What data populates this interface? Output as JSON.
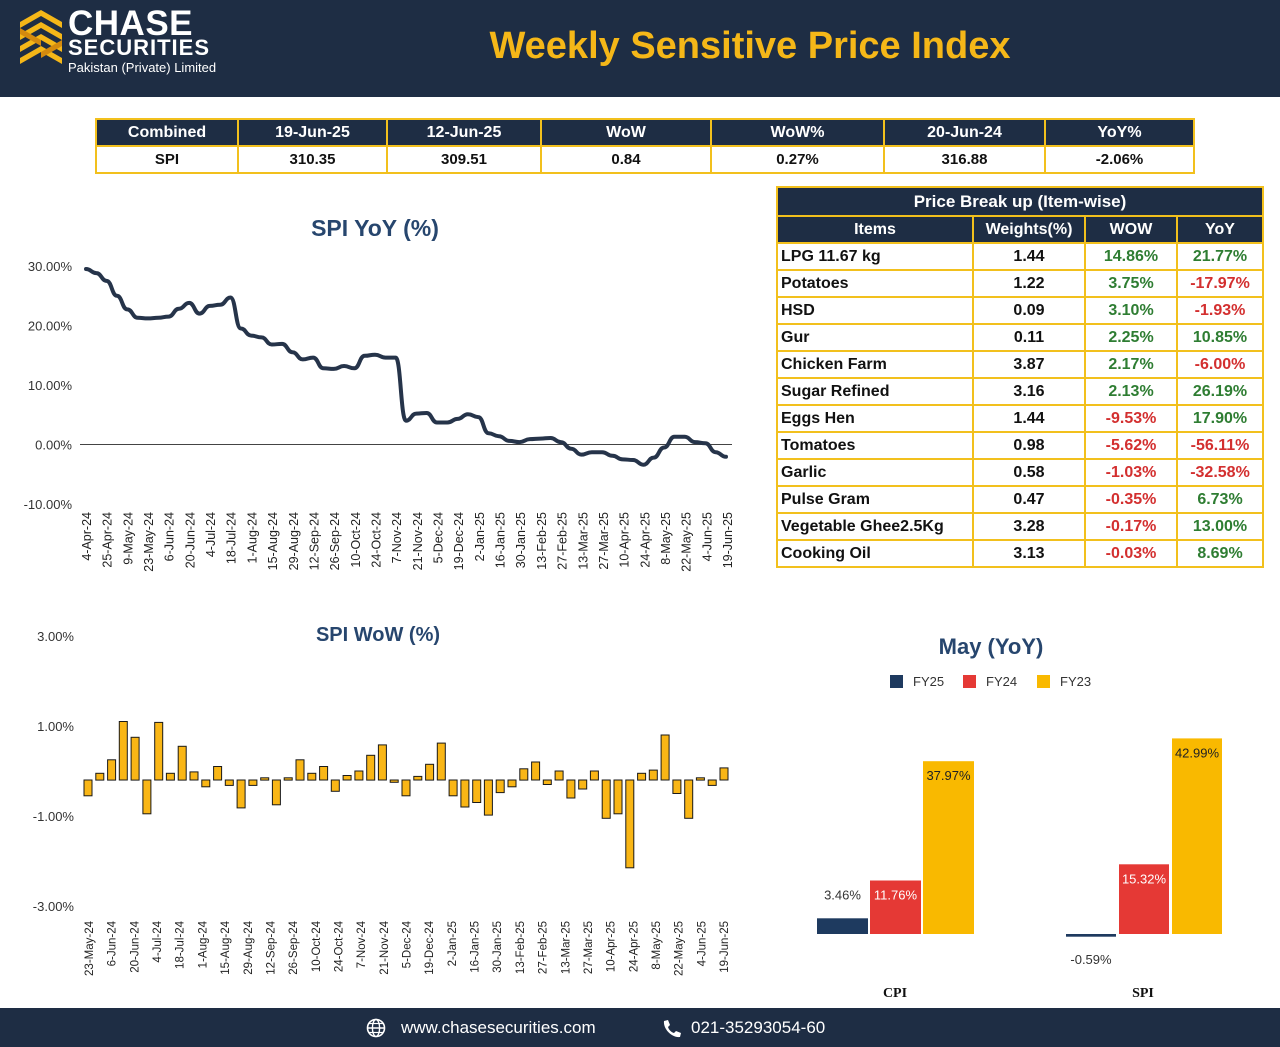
{
  "header": {
    "brand_name": "CHASE",
    "brand_sub": "SECURITIES",
    "brand_tagline": "Pakistan (Private) Limited",
    "title": "Weekly Sensitive Price Index"
  },
  "colors": {
    "navy": "#1e2d44",
    "gold": "#f5b718",
    "border_gold": "#f2c01d",
    "positive": "#2e7d32",
    "negative": "#d32f2f",
    "fy25": "#1e3a5f",
    "fy24": "#e53935",
    "fy23": "#f9b900",
    "line": "#26344a",
    "bar": "#f9b616"
  },
  "summary": {
    "headers": [
      "Combined",
      "19-Jun-25",
      "12-Jun-25",
      "WoW",
      "WoW%",
      "20-Jun-24",
      "YoY%"
    ],
    "row": [
      "SPI",
      "310.35",
      "309.51",
      "0.84",
      "0.27%",
      "316.88",
      "-2.06%"
    ]
  },
  "breakup": {
    "title": "Price Break up (Item-wise)",
    "headers": [
      "Items",
      "Weights(%)",
      "WOW",
      "YoY"
    ],
    "rows": [
      {
        "item": "LPG 11.67 kg",
        "weight": "1.44",
        "wow": "14.86%",
        "yoy": "21.77%"
      },
      {
        "item": "Potatoes",
        "weight": "1.22",
        "wow": "3.75%",
        "yoy": "-17.97%"
      },
      {
        "item": "HSD",
        "weight": "0.09",
        "wow": "3.10%",
        "yoy": "-1.93%"
      },
      {
        "item": "Gur",
        "weight": "0.11",
        "wow": "2.25%",
        "yoy": "10.85%"
      },
      {
        "item": "Chicken Farm",
        "weight": "3.87",
        "wow": "2.17%",
        "yoy": "-6.00%"
      },
      {
        "item": "Sugar Refined",
        "weight": "3.16",
        "wow": "2.13%",
        "yoy": "26.19%"
      },
      {
        "item": "Eggs Hen",
        "weight": "1.44",
        "wow": "-9.53%",
        "yoy": "17.90%"
      },
      {
        "item": "Tomatoes",
        "weight": "0.98",
        "wow": "-5.62%",
        "yoy": "-56.11%"
      },
      {
        "item": "Garlic",
        "weight": "0.58",
        "wow": "-1.03%",
        "yoy": "-32.58%"
      },
      {
        "item": "Pulse Gram",
        "weight": "0.47",
        "wow": "-0.35%",
        "yoy": "6.73%"
      },
      {
        "item": "Vegetable Ghee2.5Kg",
        "weight": "3.28",
        "wow": "-0.17%",
        "yoy": "13.00%"
      },
      {
        "item": "Cooking Oil",
        "weight": "3.13",
        "wow": "-0.03%",
        "yoy": "8.69%"
      }
    ]
  },
  "chart_data": [
    {
      "type": "line",
      "title": "SPI YoY (%)",
      "xlabel": "",
      "ylabel": "",
      "ylim": [
        -10,
        30
      ],
      "yticks": [
        "30.00%",
        "20.00%",
        "10.00%",
        "0.00%",
        "-10.00%"
      ],
      "ytick_values": [
        30,
        20,
        10,
        0,
        -10
      ],
      "xtick_labels": [
        "4-Apr-24",
        "25-Apr-24",
        "9-May-24",
        "23-May-24",
        "6-Jun-24",
        "20-Jun-24",
        "4-Jul-24",
        "18-Jul-24",
        "1-Aug-24",
        "15-Aug-24",
        "29-Aug-24",
        "12-Sep-24",
        "26-Sep-24",
        "10-Oct-24",
        "24-Oct-24",
        "7-Nov-24",
        "21-Nov-24",
        "5-Dec-24",
        "19-Dec-24",
        "2-Jan-25",
        "16-Jan-25",
        "30-Jan-25",
        "13-Feb-25",
        "27-Feb-25",
        "13-Mar-25",
        "27-Mar-25",
        "10-Apr-25",
        "24-Apr-25",
        "8-May-25",
        "22-May-25",
        "4-Jun-25",
        "19-Jun-25"
      ],
      "values": [
        29.5,
        28.8,
        27.5,
        25.0,
        22.7,
        21.3,
        21.2,
        21.3,
        21.5,
        22.8,
        23.8,
        22.0,
        23.3,
        23.5,
        24.7,
        19.5,
        18.3,
        18.0,
        16.8,
        16.9,
        15.5,
        14.3,
        14.6,
        12.8,
        12.7,
        13.2,
        12.8,
        14.9,
        15.1,
        14.6,
        14.6,
        4.0,
        5.2,
        5.3,
        3.7,
        3.7,
        4.3,
        5.1,
        4.6,
        1.9,
        1.4,
        0.6,
        0.4,
        0.9,
        1.0,
        1.1,
        0.4,
        -0.7,
        -1.7,
        -1.3,
        -1.3,
        -1.9,
        -2.5,
        -2.6,
        -3.4,
        -2.2,
        -0.5,
        1.3,
        1.3,
        0.4,
        0.2,
        -1.3,
        -2.06
      ]
    },
    {
      "type": "bar",
      "title": "SPI WoW (%)",
      "xlabel": "",
      "ylabel": "",
      "ylim": [
        -3,
        3
      ],
      "yticks": [
        "3.00%",
        "1.00%",
        "-1.00%",
        "-3.00%"
      ],
      "ytick_values": [
        3,
        1,
        -1,
        -3
      ],
      "xtick_labels": [
        "23-May-24",
        "6-Jun-24",
        "20-Jun-24",
        "4-Jul-24",
        "18-Jul-24",
        "1-Aug-24",
        "15-Aug-24",
        "29-Aug-24",
        "12-Sep-24",
        "26-Sep-24",
        "10-Oct-24",
        "24-Oct-24",
        "7-Nov-24",
        "21-Nov-24",
        "5-Dec-24",
        "19-Dec-24",
        "2-Jan-25",
        "16-Jan-25",
        "30-Jan-25",
        "13-Feb-25",
        "27-Feb-25",
        "13-Mar-25",
        "27-Mar-25",
        "10-Apr-25",
        "24-Apr-25",
        "8-May-25",
        "22-May-25",
        "4-Jun-25",
        "19-Jun-25"
      ],
      "values": [
        -0.35,
        0.15,
        0.45,
        1.3,
        0.95,
        -0.75,
        1.28,
        0.15,
        0.75,
        0.18,
        -0.15,
        0.3,
        -0.12,
        -0.62,
        -0.12,
        0.05,
        -0.55,
        0.05,
        0.45,
        0.15,
        0.3,
        -0.25,
        0.1,
        0.2,
        0.55,
        0.78,
        -0.05,
        -0.35,
        0.08,
        0.35,
        0.82,
        -0.35,
        -0.6,
        -0.5,
        -0.78,
        -0.28,
        -0.15,
        0.25,
        0.4,
        -0.1,
        0.2,
        -0.4,
        -0.2,
        0.2,
        -0.85,
        -0.75,
        -1.95,
        0.15,
        0.22,
        1.0,
        -0.3,
        -0.85,
        0.05,
        -0.12,
        0.27
      ],
      "zero_line": false
    },
    {
      "type": "bar",
      "title": "May (YoY)",
      "categories": [
        "CPI",
        "SPI"
      ],
      "legend_position": "top",
      "series": [
        {
          "name": "FY25",
          "values": [
            3.46,
            -0.59
          ],
          "labels": [
            "3.46%",
            "-0.59%"
          ]
        },
        {
          "name": "FY24",
          "values": [
            11.76,
            15.32
          ],
          "labels": [
            "11.76%",
            "15.32%"
          ]
        },
        {
          "name": "FY23",
          "values": [
            37.97,
            42.99
          ],
          "labels": [
            "37.97%",
            "42.99%"
          ]
        }
      ]
    }
  ],
  "footer": {
    "website": "www.chasesecurities.com",
    "phone": "021-35293054-60",
    "globe_icon": "globe-icon",
    "phone_icon": "phone-icon"
  }
}
